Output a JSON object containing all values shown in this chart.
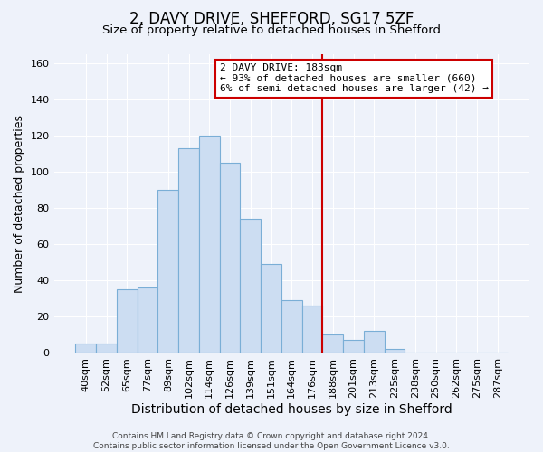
{
  "title": "2, DAVY DRIVE, SHEFFORD, SG17 5ZF",
  "subtitle": "Size of property relative to detached houses in Shefford",
  "xlabel": "Distribution of detached houses by size in Shefford",
  "ylabel": "Number of detached properties",
  "bar_labels": [
    "40sqm",
    "52sqm",
    "65sqm",
    "77sqm",
    "89sqm",
    "102sqm",
    "114sqm",
    "126sqm",
    "139sqm",
    "151sqm",
    "164sqm",
    "176sqm",
    "188sqm",
    "201sqm",
    "213sqm",
    "225sqm",
    "238sqm",
    "250sqm",
    "262sqm",
    "275sqm",
    "287sqm"
  ],
  "bar_values": [
    5,
    5,
    35,
    36,
    90,
    113,
    120,
    105,
    74,
    49,
    29,
    26,
    10,
    7,
    12,
    2,
    0,
    0,
    0,
    0,
    0
  ],
  "bar_color": "#ccddf2",
  "bar_edge_color": "#7aaed6",
  "vline_color": "#cc0000",
  "vline_index": 12,
  "annotation_text": "2 DAVY DRIVE: 183sqm\n← 93% of detached houses are smaller (660)\n6% of semi-detached houses are larger (42) →",
  "annotation_box_color": "#ffffff",
  "annotation_box_edge_color": "#cc0000",
  "ylim": [
    0,
    165
  ],
  "yticks": [
    0,
    20,
    40,
    60,
    80,
    100,
    120,
    140,
    160
  ],
  "footer_text": "Contains HM Land Registry data © Crown copyright and database right 2024.\nContains public sector information licensed under the Open Government Licence v3.0.",
  "title_fontsize": 12,
  "subtitle_fontsize": 9.5,
  "xlabel_fontsize": 10,
  "ylabel_fontsize": 9,
  "tick_fontsize": 8,
  "annotation_fontsize": 8,
  "footer_fontsize": 6.5,
  "background_color": "#eef2fa",
  "grid_color": "#ffffff"
}
